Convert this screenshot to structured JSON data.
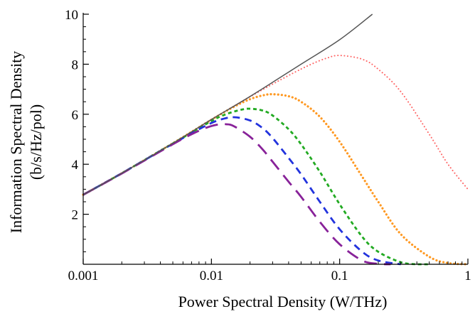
{
  "chart_data": {
    "type": "line",
    "xscale": "log",
    "xlabel": "Power Spectral Density (W/THz)",
    "ylabel_line1": "Information Spectral Density",
    "ylabel_line2": "(b/s/Hz/pol)",
    "xlim": [
      0.001,
      1
    ],
    "ylim": [
      0,
      10
    ],
    "xticks": [
      {
        "value": 0.001,
        "label": "0.001"
      },
      {
        "value": 0.01,
        "label": "0.01"
      },
      {
        "value": 0.1,
        "label": "0.1"
      },
      {
        "value": 1,
        "label": "1"
      }
    ],
    "yticks": [
      {
        "value": 2,
        "label": "2"
      },
      {
        "value": 4,
        "label": "4"
      },
      {
        "value": 6,
        "label": "6"
      },
      {
        "value": 8,
        "label": "8"
      },
      {
        "value": 10,
        "label": "10"
      }
    ],
    "grid": false,
    "series": [
      {
        "color": "#555555",
        "style": "solid",
        "x": [
          0.001,
          0.002,
          0.005,
          0.01,
          0.02,
          0.05,
          0.1,
          0.18
        ],
        "y": [
          2.78,
          3.64,
          4.84,
          5.79,
          6.71,
          8.0,
          8.98,
          10.0
        ]
      },
      {
        "color": "#ff6666",
        "style": "dotted-fine",
        "x": [
          0.001,
          0.002,
          0.005,
          0.01,
          0.02,
          0.04,
          0.06,
          0.08,
          0.1,
          0.15,
          0.2,
          0.3,
          0.5,
          0.7,
          1.0
        ],
        "y": [
          2.78,
          3.64,
          4.84,
          5.79,
          6.7,
          7.55,
          8.0,
          8.25,
          8.35,
          8.2,
          7.8,
          6.9,
          5.2,
          4.0,
          3.0
        ]
      },
      {
        "color": "#ff9922",
        "style": "dotted",
        "x": [
          0.001,
          0.002,
          0.005,
          0.01,
          0.015,
          0.02,
          0.025,
          0.03,
          0.04,
          0.05,
          0.07,
          0.1,
          0.15,
          0.2,
          0.3,
          0.5,
          0.7,
          1.0
        ],
        "y": [
          2.78,
          3.64,
          4.84,
          5.78,
          6.3,
          6.6,
          6.75,
          6.8,
          6.72,
          6.5,
          5.9,
          4.9,
          3.5,
          2.5,
          1.2,
          0.3,
          0.05,
          0.0
        ]
      },
      {
        "color": "#22aa22",
        "style": "short-dash",
        "x": [
          0.001,
          0.002,
          0.005,
          0.01,
          0.013,
          0.017,
          0.02,
          0.025,
          0.03,
          0.04,
          0.05,
          0.07,
          0.1,
          0.15,
          0.2,
          0.3,
          0.4,
          0.5
        ],
        "y": [
          2.78,
          3.64,
          4.83,
          5.73,
          6.0,
          6.18,
          6.22,
          6.15,
          5.95,
          5.4,
          4.8,
          3.7,
          2.4,
          1.1,
          0.5,
          0.08,
          0.0,
          0.0
        ]
      },
      {
        "color": "#2233dd",
        "style": "dash",
        "x": [
          0.001,
          0.002,
          0.005,
          0.008,
          0.01,
          0.012,
          0.015,
          0.02,
          0.025,
          0.03,
          0.04,
          0.05,
          0.07,
          0.1,
          0.15,
          0.2,
          0.3
        ],
        "y": [
          2.78,
          3.64,
          4.82,
          5.4,
          5.65,
          5.8,
          5.88,
          5.75,
          5.45,
          5.05,
          4.25,
          3.6,
          2.5,
          1.4,
          0.5,
          0.15,
          0.0
        ]
      },
      {
        "color": "#882299",
        "style": "long-dash",
        "x": [
          0.001,
          0.002,
          0.005,
          0.007,
          0.009,
          0.011,
          0.013,
          0.015,
          0.02,
          0.025,
          0.03,
          0.04,
          0.05,
          0.07,
          0.1,
          0.15,
          0.2,
          0.25
        ],
        "y": [
          2.78,
          3.63,
          4.8,
          5.2,
          5.45,
          5.58,
          5.6,
          5.52,
          5.1,
          4.6,
          4.1,
          3.3,
          2.7,
          1.7,
          0.8,
          0.15,
          0.02,
          0.0
        ]
      }
    ]
  }
}
